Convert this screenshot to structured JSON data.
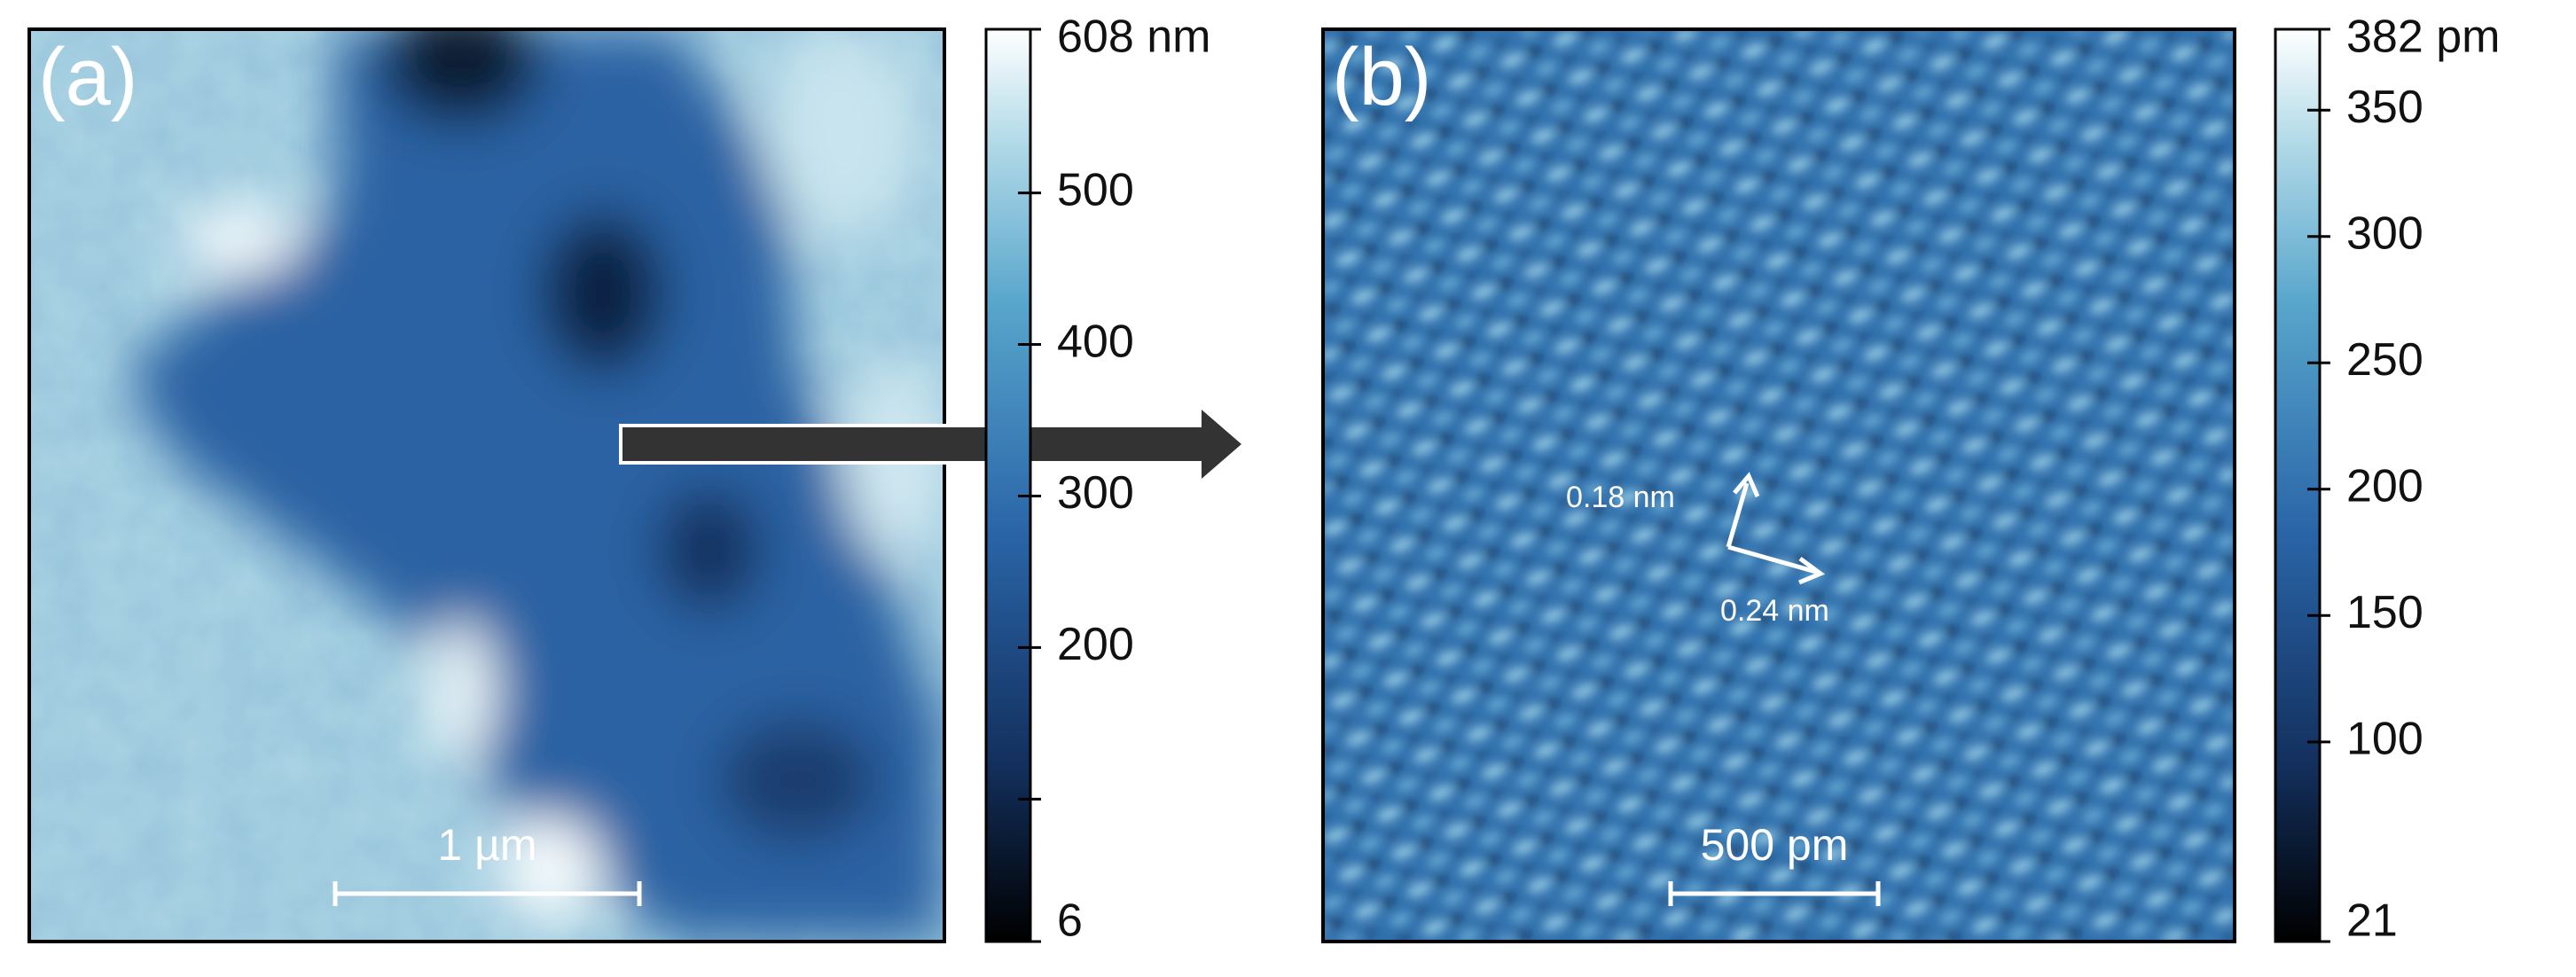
{
  "panels": [
    {
      "label": "(a)",
      "scale_bar": "1 µm",
      "colorbar": {
        "ticks": [
          {
            "value": 608,
            "label": "608 nm"
          },
          500,
          400,
          300,
          200,
          {
            "value": 100,
            "label": null
          },
          6
        ]
      }
    },
    {
      "label": "(b)",
      "scale_bar": "500 pm",
      "annotations": [
        "0.18 nm",
        "0.24 nm"
      ],
      "colorbar": {
        "ticks": [
          {
            "value": 382,
            "label": "382 pm"
          },
          350,
          300,
          250,
          200,
          150,
          100,
          21
        ]
      }
    }
  ]
}
